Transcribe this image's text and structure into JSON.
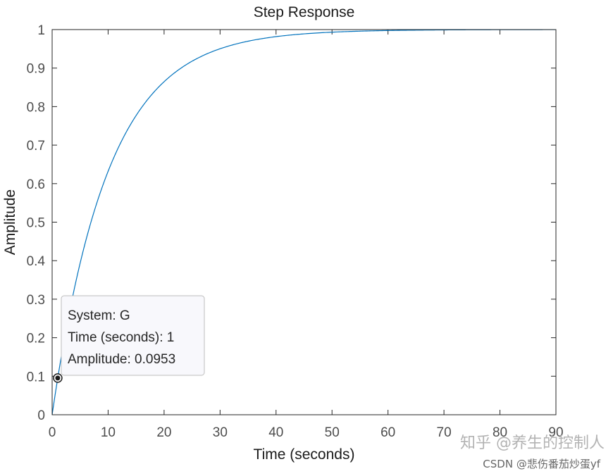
{
  "chart_data": {
    "type": "line",
    "title": "Step Response",
    "xlabel": "Time (seconds)",
    "ylabel": "Amplitude",
    "xlim": [
      0,
      90
    ],
    "ylim": [
      0,
      1
    ],
    "x_ticks": [
      "0",
      "10",
      "20",
      "30",
      "40",
      "50",
      "60",
      "70",
      "80",
      "90"
    ],
    "y_ticks": [
      "0",
      "0.1",
      "0.2",
      "0.3",
      "0.4",
      "0.5",
      "0.6",
      "0.7",
      "0.8",
      "0.9",
      "1"
    ],
    "grid": false,
    "series": [
      {
        "color": "#0072bd",
        "x": [
          0,
          1,
          2,
          3,
          5,
          7.5,
          10,
          12.5,
          15,
          17.5,
          20,
          22.5,
          25,
          27.5,
          30,
          35,
          40,
          45,
          50,
          55,
          60,
          65,
          70,
          75,
          80,
          85,
          90
        ],
        "y": [
          0,
          0.0953,
          0.181,
          0.259,
          0.393,
          0.528,
          0.632,
          0.713,
          0.777,
          0.826,
          0.865,
          0.895,
          0.918,
          0.936,
          0.95,
          0.97,
          0.982,
          0.989,
          0.993,
          0.996,
          0.998,
          0.998,
          0.999,
          0.9994,
          0.9997,
          0.9998,
          0.9999
        ]
      }
    ],
    "final_value_line": {
      "y": 1,
      "style": "dotted",
      "color": "#000000"
    },
    "datatip": {
      "x": 1,
      "y": 0.0953,
      "lines": [
        "System: G",
        "Time (seconds): 1",
        "Amplitude: 0.0953"
      ]
    }
  },
  "watermark": {
    "main": "知乎 @养生的控制人",
    "sub": "CSDN @悲伤番茄炒蛋yf"
  }
}
